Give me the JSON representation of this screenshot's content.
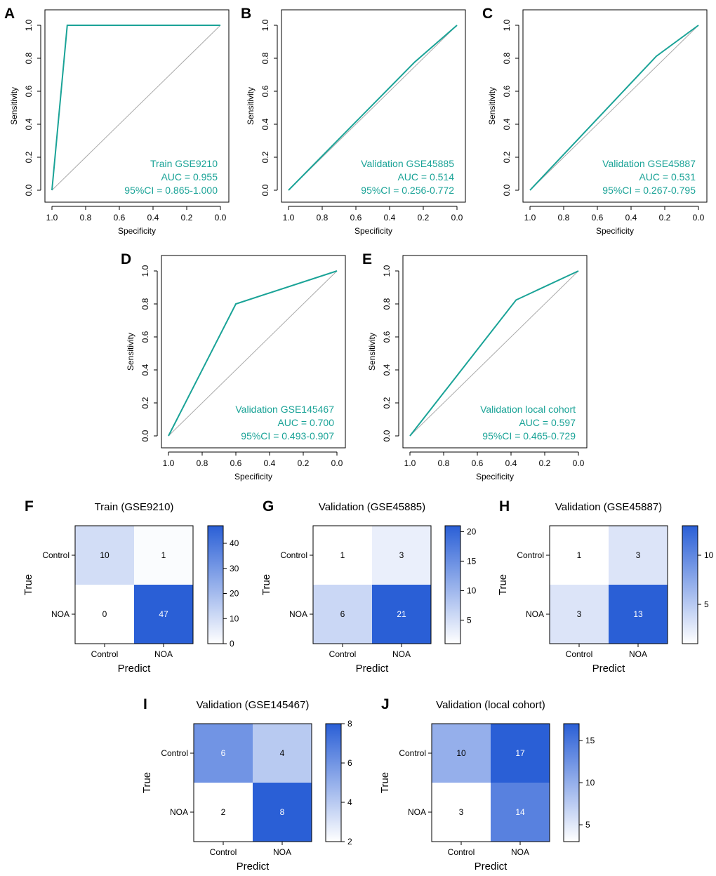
{
  "colors": {
    "roc": "#1aa397",
    "diagonal": "#aaaaaa",
    "cm_low": "#ffffff",
    "cm_high": "#2a5fd6"
  },
  "chart_data": [
    {
      "type": "line",
      "panel": "A",
      "xlabel": "Specificity",
      "ylabel": "Sensitivity",
      "xlim": [
        1.0,
        0.0
      ],
      "ylim": [
        0.0,
        1.0
      ],
      "xticks": [
        "1.0",
        "0.8",
        "0.6",
        "0.4",
        "0.2",
        "0.0"
      ],
      "yticks": [
        "0.0",
        "0.2",
        "0.4",
        "0.6",
        "0.8",
        "1.0"
      ],
      "roc": {
        "specificity": [
          1.0,
          0.909,
          0.0
        ],
        "sensitivity": [
          0.0,
          1.0,
          1.0
        ]
      },
      "legend": [
        "Train GSE9210",
        "AUC = 0.955",
        "95%CI = 0.865-1.000"
      ]
    },
    {
      "type": "line",
      "panel": "B",
      "xlabel": "Specificity",
      "ylabel": "Sensitivity",
      "xlim": [
        1.0,
        0.0
      ],
      "ylim": [
        0.0,
        1.0
      ],
      "xticks": [
        "1.0",
        "0.8",
        "0.6",
        "0.4",
        "0.2",
        "0.0"
      ],
      "yticks": [
        "0.0",
        "0.2",
        "0.4",
        "0.6",
        "0.8",
        "1.0"
      ],
      "roc": {
        "specificity": [
          1.0,
          0.25,
          0.0
        ],
        "sensitivity": [
          0.0,
          0.778,
          1.0
        ]
      },
      "legend": [
        "Validation GSE45885",
        "AUC = 0.514",
        "95%CI = 0.256-0.772"
      ]
    },
    {
      "type": "line",
      "panel": "C",
      "xlabel": "Specificity",
      "ylabel": "Sensitivity",
      "xlim": [
        1.0,
        0.0
      ],
      "ylim": [
        0.0,
        1.0
      ],
      "xticks": [
        "1.0",
        "0.8",
        "0.6",
        "0.4",
        "0.2",
        "0.0"
      ],
      "yticks": [
        "0.0",
        "0.2",
        "0.4",
        "0.6",
        "0.8",
        "1.0"
      ],
      "roc": {
        "specificity": [
          1.0,
          0.25,
          0.0
        ],
        "sensitivity": [
          0.0,
          0.8125,
          1.0
        ]
      },
      "legend": [
        "Validation GSE45887",
        "AUC = 0.531",
        "95%CI = 0.267-0.795"
      ]
    },
    {
      "type": "line",
      "panel": "D",
      "xlabel": "Specificity",
      "ylabel": "Sensitivity",
      "xlim": [
        1.0,
        0.0
      ],
      "ylim": [
        0.0,
        1.0
      ],
      "xticks": [
        "1.0",
        "0.8",
        "0.6",
        "0.4",
        "0.2",
        "0.0"
      ],
      "yticks": [
        "0.0",
        "0.2",
        "0.4",
        "0.6",
        "0.8",
        "1.0"
      ],
      "roc": {
        "specificity": [
          1.0,
          0.6,
          0.0
        ],
        "sensitivity": [
          0.0,
          0.8,
          1.0
        ]
      },
      "legend": [
        "Validation GSE145467",
        "AUC = 0.700",
        "95%CI = 0.493-0.907"
      ]
    },
    {
      "type": "line",
      "panel": "E",
      "xlabel": "Specificity",
      "ylabel": "Sensitivity",
      "xlim": [
        1.0,
        0.0
      ],
      "ylim": [
        0.0,
        1.0
      ],
      "xticks": [
        "1.0",
        "0.8",
        "0.6",
        "0.4",
        "0.2",
        "0.0"
      ],
      "yticks": [
        "0.0",
        "0.2",
        "0.4",
        "0.6",
        "0.8",
        "1.0"
      ],
      "roc": {
        "specificity": [
          1.0,
          0.37,
          0.0
        ],
        "sensitivity": [
          0.0,
          0.824,
          1.0
        ]
      },
      "legend": [
        "Validation local cohort",
        "AUC = 0.597",
        "95%CI = 0.465-0.729"
      ]
    },
    {
      "type": "heatmap",
      "panel": "F",
      "title": "Train (GSE9210)",
      "xlabel": "Predict",
      "ylabel": "True",
      "row_labels": [
        "Control",
        "NOA"
      ],
      "col_labels": [
        "Control",
        "NOA"
      ],
      "values": [
        [
          10,
          1
        ],
        [
          0,
          47
        ]
      ],
      "scale": {
        "min": 0,
        "max": 47,
        "ticks": [
          0,
          10,
          20,
          30,
          40
        ]
      }
    },
    {
      "type": "heatmap",
      "panel": "G",
      "title": "Validation (GSE45885)",
      "xlabel": "Predict",
      "ylabel": "True",
      "row_labels": [
        "Control",
        "NOA"
      ],
      "col_labels": [
        "Control",
        "NOA"
      ],
      "values": [
        [
          1,
          3
        ],
        [
          6,
          21
        ]
      ],
      "scale": {
        "min": 1,
        "max": 21,
        "ticks": [
          5,
          10,
          15,
          20
        ]
      }
    },
    {
      "type": "heatmap",
      "panel": "H",
      "title": "Validation (GSE45887)",
      "xlabel": "Predict",
      "ylabel": "True",
      "row_labels": [
        "Control",
        "NOA"
      ],
      "col_labels": [
        "Control",
        "NOA"
      ],
      "values": [
        [
          1,
          3
        ],
        [
          3,
          13
        ]
      ],
      "scale": {
        "min": 1,
        "max": 13,
        "ticks": [
          5,
          10
        ]
      }
    },
    {
      "type": "heatmap",
      "panel": "I",
      "title": "Validation (GSE145467)",
      "xlabel": "Predict",
      "ylabel": "True",
      "row_labels": [
        "Control",
        "NOA"
      ],
      "col_labels": [
        "Control",
        "NOA"
      ],
      "values": [
        [
          6,
          4
        ],
        [
          2,
          8
        ]
      ],
      "scale": {
        "min": 2,
        "max": 8,
        "ticks": [
          2,
          4,
          6,
          8
        ]
      }
    },
    {
      "type": "heatmap",
      "panel": "J",
      "title": "Validation (local cohort)",
      "xlabel": "Predict",
      "ylabel": "True",
      "row_labels": [
        "Control",
        "NOA"
      ],
      "col_labels": [
        "Control",
        "NOA"
      ],
      "values": [
        [
          10,
          17
        ],
        [
          3,
          14
        ]
      ],
      "scale": {
        "min": 3,
        "max": 17,
        "ticks": [
          5,
          10,
          15
        ]
      }
    }
  ]
}
